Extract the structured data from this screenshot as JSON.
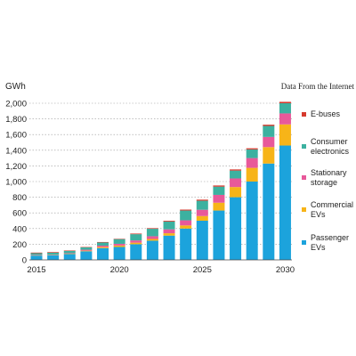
{
  "chart_data": {
    "type": "bar",
    "stacked": true,
    "unit_label": "GWh",
    "source_note": "Data From the Internet",
    "x": [
      2015,
      2016,
      2017,
      2018,
      2019,
      2020,
      2021,
      2022,
      2023,
      2024,
      2025,
      2026,
      2027,
      2028,
      2029,
      2030
    ],
    "x_tick_labels": [
      "2015",
      "2020",
      "2025",
      "2030"
    ],
    "x_ticks": [
      2015,
      2020,
      2025,
      2030
    ],
    "ylim": [
      0,
      2000
    ],
    "y_ticks": [
      0,
      200,
      400,
      600,
      800,
      1000,
      1200,
      1400,
      1600,
      1800,
      2000
    ],
    "y_tick_labels": [
      "0",
      "200",
      "400",
      "600",
      "800",
      "1,000",
      "1,200",
      "1,400",
      "1,600",
      "1,800",
      "2,000"
    ],
    "grid": "horizontal dotted",
    "legend_position": "right",
    "series": [
      {
        "name": "Passenger EVs",
        "color": "#1ca3dc",
        "values": [
          55,
          60,
          75,
          110,
          150,
          165,
          200,
          245,
          310,
          400,
          500,
          630,
          800,
          1000,
          1230,
          1460
        ]
      },
      {
        "name": "Commercial EVs",
        "color": "#f7b418",
        "values": [
          3,
          3,
          5,
          8,
          14,
          18,
          20,
          22,
          30,
          40,
          60,
          100,
          130,
          175,
          210,
          270
        ]
      },
      {
        "name": "Stationary storage",
        "color": "#e8599a",
        "values": [
          5,
          4,
          6,
          12,
          18,
          22,
          28,
          35,
          50,
          65,
          80,
          100,
          110,
          125,
          130,
          140
        ]
      },
      {
        "name": "Consumer electronics",
        "color": "#3cb1a0",
        "values": [
          22,
          25,
          28,
          30,
          40,
          60,
          80,
          95,
          100,
          125,
          115,
          105,
          100,
          110,
          140,
          130
        ]
      },
      {
        "name": "E-buses",
        "color": "#d63a2e",
        "values": [
          8,
          8,
          6,
          5,
          6,
          5,
          8,
          8,
          10,
          12,
          14,
          15,
          15,
          15,
          16,
          18
        ]
      }
    ],
    "legend": [
      "E-buses",
      "Consumer electronics",
      "Stationary storage",
      "Commercial EVs",
      "Passenger EVs"
    ]
  }
}
